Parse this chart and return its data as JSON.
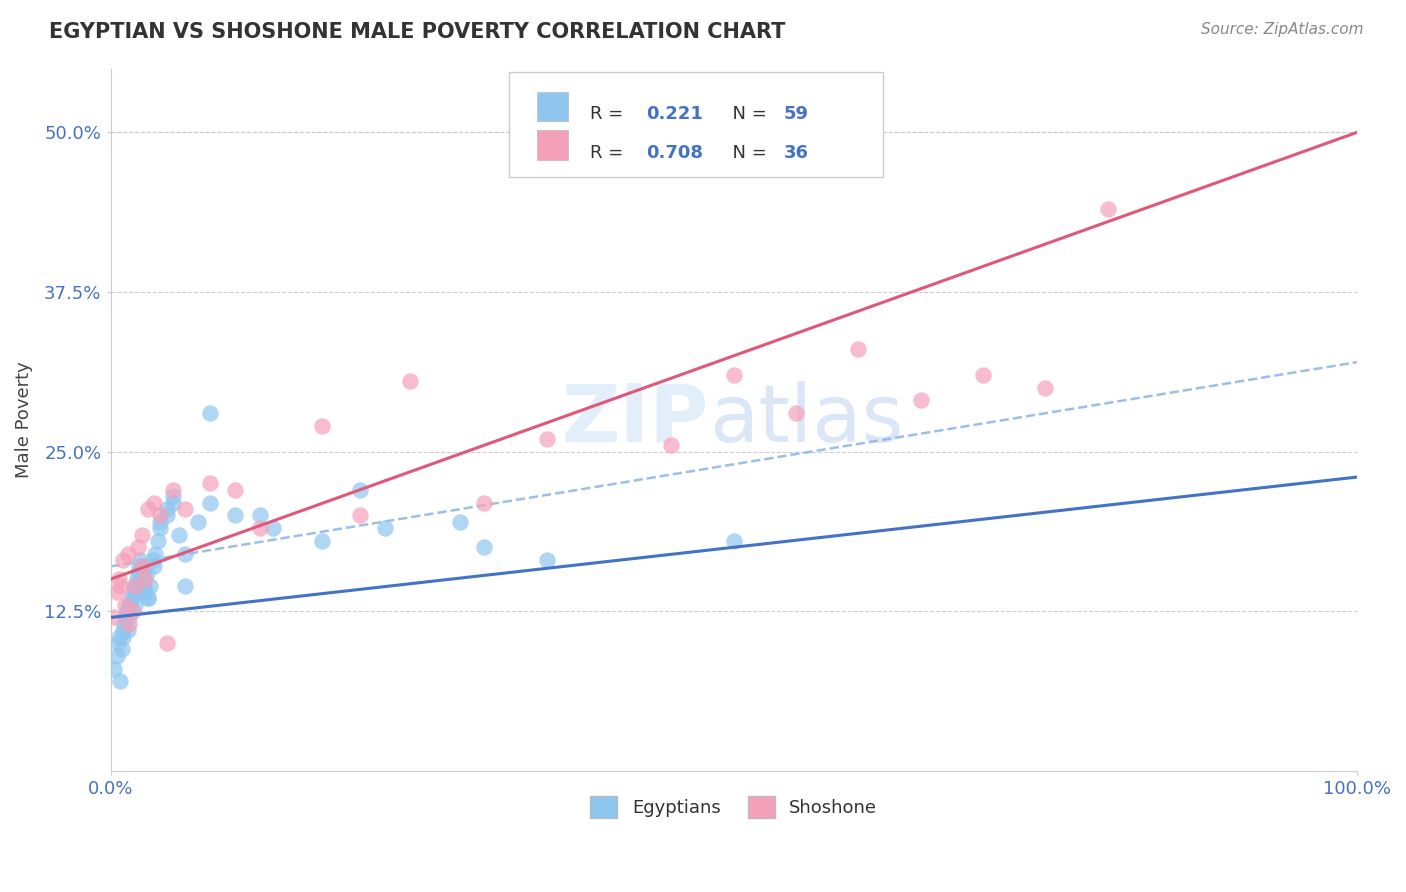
{
  "title": "EGYPTIAN VS SHOSHONE MALE POVERTY CORRELATION CHART",
  "source": "Source: ZipAtlas.com",
  "ylabel": "Male Poverty",
  "xlim": [
    0,
    100
  ],
  "ylim": [
    0,
    55
  ],
  "ytick_vals": [
    12.5,
    25.0,
    37.5,
    50.0
  ],
  "egyptian_color": "#8EC6F0",
  "shoshone_color": "#F4A0B8",
  "egyptian_line_color": "#4472C4",
  "shoshone_line_color": "#E05878",
  "dashed_line_color": "#90B8E8",
  "background_color": "#FFFFFF",
  "grid_color": "#CCCCCC",
  "legend_r1_val": "0.221",
  "legend_n1_val": "59",
  "legend_r2_val": "0.708",
  "legend_n2_val": "36",
  "watermark1": "ZIP",
  "watermark2": "atlas",
  "eg_x": [
    0.3,
    0.5,
    0.6,
    0.7,
    0.8,
    0.9,
    1.0,
    1.1,
    1.2,
    1.3,
    1.4,
    1.5,
    1.6,
    1.7,
    1.8,
    1.9,
    2.0,
    2.1,
    2.2,
    2.3,
    2.4,
    2.5,
    2.6,
    2.7,
    2.8,
    2.9,
    3.0,
    3.2,
    3.4,
    3.6,
    3.8,
    4.0,
    4.5,
    5.0,
    5.5,
    6.0,
    7.0,
    8.0,
    10.0,
    13.0,
    17.0,
    22.0,
    30.0,
    35.0,
    50.0,
    1.0,
    1.5,
    2.0,
    2.5,
    3.0,
    3.5,
    4.0,
    4.5,
    5.0,
    6.0,
    8.0,
    12.0,
    20.0,
    28.0
  ],
  "eg_y": [
    8.0,
    9.0,
    10.0,
    10.5,
    7.0,
    9.5,
    11.0,
    11.5,
    12.0,
    12.5,
    11.0,
    12.0,
    13.0,
    13.5,
    14.0,
    14.5,
    13.0,
    15.0,
    15.5,
    16.0,
    16.5,
    15.0,
    16.0,
    14.5,
    14.0,
    15.5,
    13.5,
    14.5,
    16.5,
    17.0,
    18.0,
    19.0,
    20.0,
    21.0,
    18.5,
    17.0,
    19.5,
    28.0,
    20.0,
    19.0,
    18.0,
    19.0,
    17.5,
    16.5,
    18.0,
    10.5,
    13.0,
    14.0,
    15.5,
    13.5,
    16.0,
    19.5,
    20.5,
    21.5,
    14.5,
    21.0,
    20.0,
    22.0,
    19.5
  ],
  "sh_x": [
    0.3,
    0.5,
    0.7,
    1.0,
    1.2,
    1.5,
    1.8,
    2.0,
    2.2,
    2.5,
    2.8,
    3.0,
    3.5,
    4.0,
    5.0,
    6.0,
    8.0,
    12.0,
    17.0,
    24.0,
    30.0,
    45.0,
    55.0,
    65.0,
    75.0,
    0.8,
    1.4,
    2.5,
    4.5,
    10.0,
    20.0,
    35.0,
    50.0,
    60.0,
    70.0,
    80.0
  ],
  "sh_y": [
    12.0,
    14.0,
    15.0,
    16.5,
    13.0,
    11.5,
    12.5,
    14.5,
    17.5,
    16.0,
    15.0,
    20.5,
    21.0,
    20.0,
    22.0,
    20.5,
    22.5,
    19.0,
    27.0,
    30.5,
    21.0,
    25.5,
    28.0,
    29.0,
    30.0,
    14.5,
    17.0,
    18.5,
    10.0,
    22.0,
    20.0,
    26.0,
    31.0,
    33.0,
    31.0,
    44.0
  ]
}
